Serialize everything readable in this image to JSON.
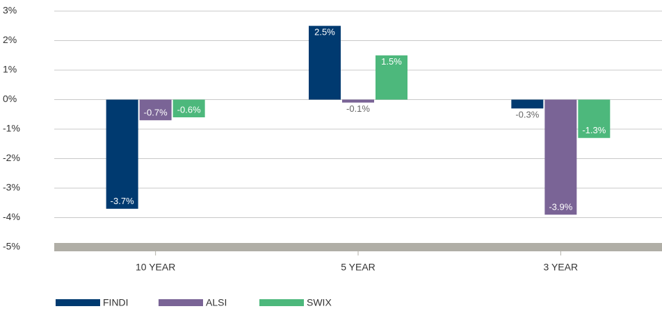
{
  "chart_data": {
    "type": "bar",
    "categories": [
      "10 YEAR",
      "5 YEAR",
      "3 YEAR"
    ],
    "series": [
      {
        "name": "FINDI",
        "color": "#003a70",
        "values": [
          -3.7,
          2.5,
          -0.3
        ],
        "value_labels": [
          "-3.7%",
          "2.5%",
          "-0.3%"
        ]
      },
      {
        "name": "ALSI",
        "color": "#7a6496",
        "values": [
          -0.7,
          -0.1,
          -3.9
        ],
        "value_labels": [
          "-0.7%",
          "-0.1%",
          "-3.9%"
        ]
      },
      {
        "name": "SWIX",
        "color": "#4db87c",
        "values": [
          -0.6,
          1.5,
          -1.3
        ],
        "value_labels": [
          "-0.6%",
          "1.5%",
          "-1.3%"
        ]
      }
    ],
    "ylim": [
      -5,
      3
    ],
    "yticks": [
      {
        "value": 3,
        "label": "3%"
      },
      {
        "value": 2,
        "label": "2%"
      },
      {
        "value": 1,
        "label": "1%"
      },
      {
        "value": 0,
        "label": "0%"
      },
      {
        "value": -1,
        "label": "-1%"
      },
      {
        "value": -2,
        "label": "-2%"
      },
      {
        "value": -3,
        "label": "-3%"
      },
      {
        "value": -4,
        "label": "-4%"
      },
      {
        "value": -5,
        "label": "-5%"
      }
    ],
    "grid": true,
    "legend": "bottom-left"
  }
}
